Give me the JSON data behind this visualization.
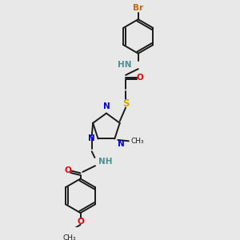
{
  "background_color": "#e8e8e8",
  "bond_color": "#1a1a1a",
  "atom_colors": {
    "N": "#0000ee",
    "O": "#ee0000",
    "S": "#ccaa00",
    "Br": "#cc6600",
    "NH": "#4a9090",
    "C": "#1a1a1a"
  },
  "fig_width": 3.0,
  "fig_height": 3.0,
  "dpi": 100,
  "xlim": [
    0,
    10
  ],
  "ylim": [
    0,
    10
  ]
}
